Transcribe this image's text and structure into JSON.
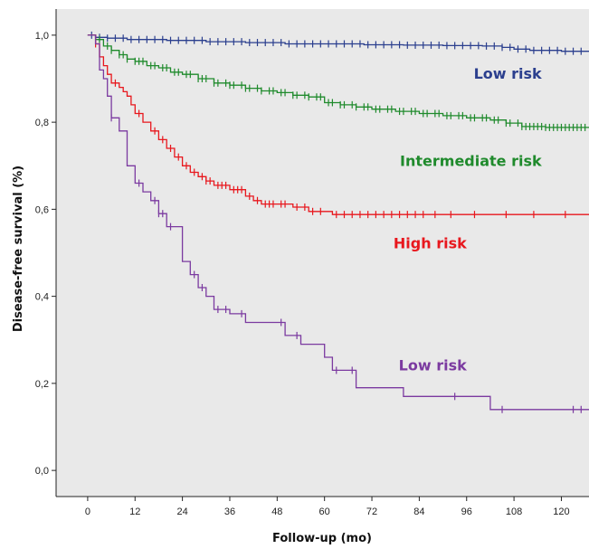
{
  "chart_data": {
    "type": "line",
    "xlabel": "Follow-up (mo)",
    "ylabel": "Disease-free survival (%)",
    "xlim": [
      -8,
      127
    ],
    "ylim": [
      -0.06,
      1.06
    ],
    "x_ticks": [
      0,
      12,
      24,
      36,
      48,
      60,
      72,
      84,
      96,
      108,
      120
    ],
    "x_tick_labels": [
      "0",
      "12",
      "24",
      "36",
      "48",
      "60",
      "72",
      "84",
      "96",
      "108",
      "120"
    ],
    "y_ticks": [
      0.0,
      0.2,
      0.4,
      0.6,
      0.8,
      1.0
    ],
    "y_tick_labels": [
      "0,0",
      "0,2",
      "0,4",
      "0,6",
      "0,8",
      "1,0"
    ],
    "grid": false,
    "background": "#e9e9e9",
    "series": [
      {
        "name": "Low risk",
        "color": "#2b3f8e",
        "label_pos": [
          115,
          0.9
        ],
        "points": [
          [
            0,
            1.0
          ],
          [
            2,
            0.995
          ],
          [
            5,
            0.993
          ],
          [
            10,
            0.99
          ],
          [
            20,
            0.988
          ],
          [
            30,
            0.985
          ],
          [
            40,
            0.983
          ],
          [
            50,
            0.98
          ],
          [
            60,
            0.98
          ],
          [
            70,
            0.978
          ],
          [
            80,
            0.977
          ],
          [
            90,
            0.976
          ],
          [
            100,
            0.975
          ],
          [
            105,
            0.972
          ],
          [
            108,
            0.968
          ],
          [
            112,
            0.965
          ],
          [
            120,
            0.963
          ],
          [
            127,
            0.963
          ]
        ],
        "censored": [
          1,
          3,
          5,
          7,
          9,
          11,
          13,
          15,
          17,
          19,
          21,
          23,
          25,
          27,
          29,
          31,
          33,
          35,
          37,
          39,
          41,
          43,
          45,
          47,
          49,
          51,
          53,
          55,
          57,
          59,
          61,
          63,
          65,
          67,
          69,
          71,
          73,
          75,
          77,
          79,
          81,
          83,
          85,
          87,
          89,
          91,
          93,
          95,
          97,
          99,
          101,
          103,
          105,
          107,
          109,
          111,
          113,
          115,
          117,
          119,
          121,
          123,
          125
        ]
      },
      {
        "name": "Intermediate risk",
        "color": "#1f8a2c",
        "label_pos": [
          115,
          0.7
        ],
        "points": [
          [
            0,
            1.0
          ],
          [
            2,
            0.99
          ],
          [
            4,
            0.975
          ],
          [
            6,
            0.965
          ],
          [
            8,
            0.955
          ],
          [
            10,
            0.945
          ],
          [
            12,
            0.94
          ],
          [
            15,
            0.93
          ],
          [
            18,
            0.925
          ],
          [
            21,
            0.915
          ],
          [
            24,
            0.91
          ],
          [
            28,
            0.9
          ],
          [
            32,
            0.89
          ],
          [
            36,
            0.885
          ],
          [
            40,
            0.878
          ],
          [
            44,
            0.872
          ],
          [
            48,
            0.868
          ],
          [
            52,
            0.862
          ],
          [
            56,
            0.858
          ],
          [
            60,
            0.845
          ],
          [
            64,
            0.84
          ],
          [
            68,
            0.835
          ],
          [
            72,
            0.83
          ],
          [
            78,
            0.825
          ],
          [
            84,
            0.82
          ],
          [
            90,
            0.815
          ],
          [
            96,
            0.81
          ],
          [
            102,
            0.805
          ],
          [
            106,
            0.798
          ],
          [
            110,
            0.79
          ],
          [
            116,
            0.788
          ],
          [
            127,
            0.788
          ]
        ],
        "censored": [
          3,
          5,
          6,
          8,
          9,
          10,
          12,
          13,
          14,
          16,
          17,
          19,
          20,
          22,
          23,
          25,
          26,
          28,
          29,
          30,
          32,
          33,
          35,
          36,
          37,
          39,
          40,
          41,
          43,
          44,
          46,
          47,
          49,
          50,
          52,
          53,
          55,
          56,
          58,
          59,
          61,
          62,
          64,
          65,
          67,
          68,
          70,
          71,
          73,
          74,
          76,
          77,
          79,
          80,
          82,
          83,
          85,
          86,
          88,
          89,
          91,
          92,
          94,
          95,
          97,
          98,
          100,
          101,
          103,
          104,
          106,
          107,
          109,
          110,
          111,
          112,
          113,
          114,
          115,
          116,
          117,
          118,
          119,
          120,
          121,
          122,
          123,
          124,
          125,
          126
        ]
      },
      {
        "name": "High risk",
        "color": "#e8171d",
        "label_pos": [
          96,
          0.51
        ],
        "points": [
          [
            0,
            1.0
          ],
          [
            2,
            0.98
          ],
          [
            3,
            0.95
          ],
          [
            4,
            0.93
          ],
          [
            5,
            0.91
          ],
          [
            6,
            0.89
          ],
          [
            8,
            0.88
          ],
          [
            9,
            0.87
          ],
          [
            10,
            0.86
          ],
          [
            11,
            0.84
          ],
          [
            12,
            0.82
          ],
          [
            14,
            0.8
          ],
          [
            16,
            0.78
          ],
          [
            18,
            0.76
          ],
          [
            20,
            0.74
          ],
          [
            22,
            0.72
          ],
          [
            24,
            0.7
          ],
          [
            26,
            0.685
          ],
          [
            28,
            0.675
          ],
          [
            30,
            0.665
          ],
          [
            32,
            0.655
          ],
          [
            36,
            0.645
          ],
          [
            40,
            0.63
          ],
          [
            42,
            0.62
          ],
          [
            44,
            0.612
          ],
          [
            48,
            0.612
          ],
          [
            52,
            0.605
          ],
          [
            56,
            0.595
          ],
          [
            60,
            0.595
          ],
          [
            62,
            0.588
          ],
          [
            127,
            0.588
          ]
        ],
        "censored": [
          2,
          7,
          13,
          17,
          19,
          21,
          23,
          25,
          27,
          29,
          30,
          31,
          33,
          34,
          35,
          37,
          38,
          39,
          41,
          43,
          45,
          46,
          47,
          49,
          50,
          53,
          55,
          57,
          59,
          63,
          65,
          67,
          69,
          71,
          73,
          75,
          77,
          79,
          81,
          83,
          85,
          88,
          92,
          98,
          106,
          113,
          121
        ]
      },
      {
        "name": "Low risk",
        "color": "#7b3aa0",
        "label_pos": [
          96,
          0.23
        ],
        "points": [
          [
            0,
            1.0
          ],
          [
            2,
            0.98
          ],
          [
            3,
            0.92
          ],
          [
            4,
            0.9
          ],
          [
            5,
            0.86
          ],
          [
            6,
            0.81
          ],
          [
            8,
            0.78
          ],
          [
            10,
            0.7
          ],
          [
            12,
            0.66
          ],
          [
            14,
            0.64
          ],
          [
            16,
            0.62
          ],
          [
            18,
            0.59
          ],
          [
            20,
            0.56
          ],
          [
            24,
            0.48
          ],
          [
            26,
            0.45
          ],
          [
            28,
            0.42
          ],
          [
            30,
            0.4
          ],
          [
            32,
            0.37
          ],
          [
            36,
            0.36
          ],
          [
            40,
            0.34
          ],
          [
            46,
            0.34
          ],
          [
            50,
            0.31
          ],
          [
            54,
            0.29
          ],
          [
            60,
            0.26
          ],
          [
            62,
            0.23
          ],
          [
            64,
            0.23
          ],
          [
            68,
            0.19
          ],
          [
            74,
            0.19
          ],
          [
            80,
            0.17
          ],
          [
            100,
            0.17
          ],
          [
            102,
            0.14
          ],
          [
            127,
            0.14
          ]
        ],
        "censored": [
          6,
          13,
          17,
          18,
          19,
          21,
          27,
          29,
          33,
          35,
          39,
          49,
          53,
          63,
          67,
          93,
          105,
          123,
          125
        ]
      }
    ]
  }
}
